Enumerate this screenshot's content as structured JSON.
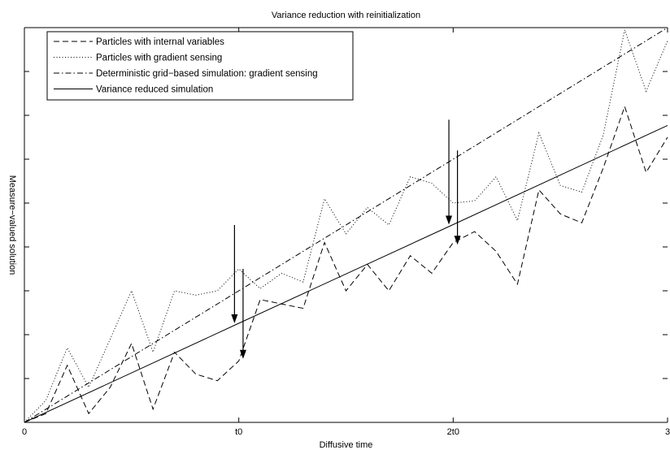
{
  "chart_data": {
    "type": "line",
    "title": "Variance reduction with reinitialization",
    "xlabel": "Diffusive time",
    "ylabel": "Measure−valued solution",
    "xlim": [
      0,
      3
    ],
    "ylim": [
      0,
      9
    ],
    "x_ticks": [
      {
        "value": 0,
        "label": "0"
      },
      {
        "value": 1,
        "label": "t0"
      },
      {
        "value": 2,
        "label": "2t0"
      },
      {
        "value": 3,
        "label": "3"
      }
    ],
    "y_ticks": [
      1,
      2,
      3,
      4,
      5,
      6,
      7,
      8,
      9
    ],
    "grid": false,
    "legend_position": "top-left",
    "series": [
      {
        "name": "Particles with internal variables",
        "style": "dashed",
        "x": [
          0,
          0.1,
          0.2,
          0.3,
          0.4,
          0.5,
          0.6,
          0.7,
          0.8,
          0.9,
          1.0,
          1.1,
          1.2,
          1.3,
          1.4,
          1.5,
          1.6,
          1.7,
          1.8,
          1.9,
          2.0,
          2.1,
          2.2,
          2.3,
          2.4,
          2.5,
          2.6,
          2.7,
          2.8,
          2.9,
          3.0
        ],
        "y": [
          0,
          0.2,
          1.3,
          0.2,
          0.8,
          1.8,
          0.3,
          1.6,
          1.1,
          0.95,
          1.4,
          2.8,
          2.7,
          2.6,
          4.1,
          3.0,
          3.6,
          3.0,
          3.8,
          3.4,
          4.1,
          4.35,
          3.9,
          3.15,
          5.3,
          4.75,
          4.55,
          5.8,
          7.2,
          5.7,
          6.5
        ]
      },
      {
        "name": "Particles with gradient sensing",
        "style": "dotted",
        "x": [
          0,
          0.1,
          0.2,
          0.3,
          0.4,
          0.5,
          0.6,
          0.7,
          0.8,
          0.9,
          1.0,
          1.1,
          1.2,
          1.3,
          1.4,
          1.5,
          1.6,
          1.7,
          1.8,
          1.9,
          2.0,
          2.1,
          2.2,
          2.3,
          2.4,
          2.5,
          2.6,
          2.7,
          2.8,
          2.9,
          3.0
        ],
        "y": [
          0,
          0.5,
          1.7,
          0.8,
          1.9,
          3.0,
          1.6,
          3.0,
          2.9,
          3.0,
          3.5,
          3.05,
          3.4,
          3.2,
          5.1,
          4.3,
          4.9,
          4.5,
          5.6,
          5.45,
          5.0,
          5.05,
          5.6,
          4.6,
          6.6,
          5.4,
          5.25,
          6.55,
          8.95,
          7.55,
          8.7
        ]
      },
      {
        "name": "Deterministic grid−based simulation: gradient sensing",
        "style": "dashdot",
        "x": [
          0,
          1,
          2,
          3
        ],
        "y": [
          0,
          3.0,
          6.0,
          9.0
        ]
      },
      {
        "name": "Variance reduced simulation",
        "style": "solid",
        "x": [
          0,
          1,
          2,
          3
        ],
        "y": [
          0,
          2.26,
          4.51,
          6.77
        ]
      },
      {
        "name": "",
        "style": "solid",
        "x": [
          0.98,
          0.98,
          2.0,
          2.0
        ],
        "y": [
          4.5,
          2.26,
          6.9,
          4.51
        ]
      }
    ],
    "annotations": [
      {
        "type": "arrow",
        "x": 0.98,
        "y_from": 4.5,
        "y_to": 2.26
      },
      {
        "type": "arrow",
        "x": 1.02,
        "y_from": 3.5,
        "y_to": 1.45
      },
      {
        "type": "arrow",
        "x": 1.98,
        "y_from": 6.9,
        "y_to": 4.51
      },
      {
        "type": "arrow",
        "x": 2.02,
        "y_from": 6.2,
        "y_to": 4.05
      }
    ]
  }
}
